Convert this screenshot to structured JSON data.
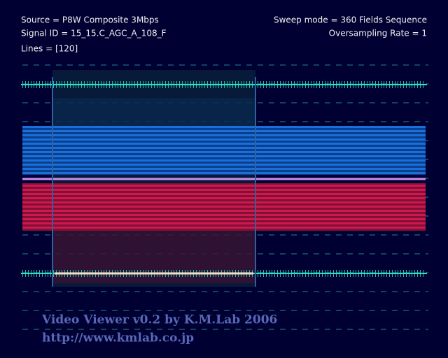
{
  "header": {
    "source": "Source = P8W Composite 3Mbps",
    "signal_id": "Signal ID = 15_15.C_AGC_A_108_F",
    "lines": "Lines = [120]",
    "sweep_mode": "Sweep mode = 360 Fields Sequence",
    "oversampling": "Oversampling Rate = 1"
  },
  "footer": {
    "credit": "Video Viewer v0.2 by K.M.Lab 2006",
    "url": "http://www.kmlab.co.jp"
  }
}
